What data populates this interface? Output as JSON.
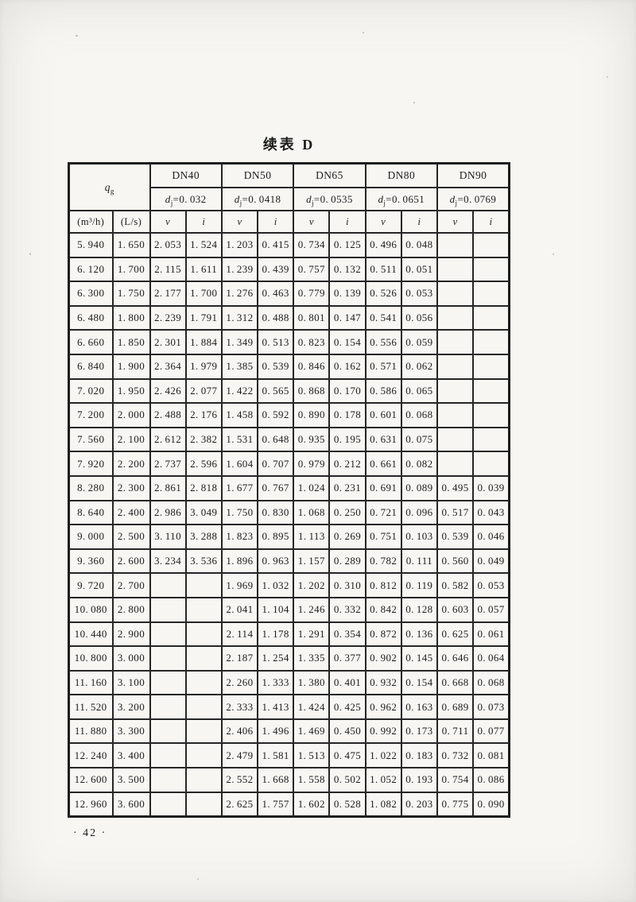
{
  "page": {
    "title": "续表 D",
    "page_number": "· 42 ·"
  },
  "table": {
    "flow_header": {
      "symbol": "q",
      "subscript": "g"
    },
    "unit_headers": [
      "(m³/h)",
      "(L/s)"
    ],
    "dn_groups": [
      {
        "dn": "DN40",
        "dj_symbol": "d",
        "dj_subscript": "j",
        "dj_value": "0.032"
      },
      {
        "dn": "DN50",
        "dj_symbol": "d",
        "dj_subscript": "j",
        "dj_value": "0.0418"
      },
      {
        "dn": "DN65",
        "dj_symbol": "d",
        "dj_subscript": "j",
        "dj_value": "0.0535"
      },
      {
        "dn": "DN80",
        "dj_symbol": "d",
        "dj_subscript": "j",
        "dj_value": "0.0651"
      },
      {
        "dn": "DN90",
        "dj_symbol": "d",
        "dj_subscript": "j",
        "dj_value": "0.0769"
      }
    ],
    "v_label": "v",
    "i_label": "i",
    "rows": [
      [
        "5.940",
        "1.650",
        "2.053",
        "1.524",
        "1.203",
        "0.415",
        "0.734",
        "0.125",
        "0.496",
        "0.048",
        "",
        ""
      ],
      [
        "6.120",
        "1.700",
        "2.115",
        "1.611",
        "1.239",
        "0.439",
        "0.757",
        "0.132",
        "0.511",
        "0.051",
        "",
        ""
      ],
      [
        "6.300",
        "1.750",
        "2.177",
        "1.700",
        "1.276",
        "0.463",
        "0.779",
        "0.139",
        "0.526",
        "0.053",
        "",
        ""
      ],
      [
        "6.480",
        "1.800",
        "2.239",
        "1.791",
        "1.312",
        "0.488",
        "0.801",
        "0.147",
        "0.541",
        "0.056",
        "",
        ""
      ],
      [
        "6.660",
        "1.850",
        "2.301",
        "1.884",
        "1.349",
        "0.513",
        "0.823",
        "0.154",
        "0.556",
        "0.059",
        "",
        ""
      ],
      [
        "6.840",
        "1.900",
        "2.364",
        "1.979",
        "1.385",
        "0.539",
        "0.846",
        "0.162",
        "0.571",
        "0.062",
        "",
        ""
      ],
      [
        "7.020",
        "1.950",
        "2.426",
        "2.077",
        "1.422",
        "0.565",
        "0.868",
        "0.170",
        "0.586",
        "0.065",
        "",
        ""
      ],
      [
        "7.200",
        "2.000",
        "2.488",
        "2.176",
        "1.458",
        "0.592",
        "0.890",
        "0.178",
        "0.601",
        "0.068",
        "",
        ""
      ],
      [
        "7.560",
        "2.100",
        "2.612",
        "2.382",
        "1.531",
        "0.648",
        "0.935",
        "0.195",
        "0.631",
        "0.075",
        "",
        ""
      ],
      [
        "7.920",
        "2.200",
        "2.737",
        "2.596",
        "1.604",
        "0.707",
        "0.979",
        "0.212",
        "0.661",
        "0.082",
        "",
        ""
      ],
      [
        "8.280",
        "2.300",
        "2.861",
        "2.818",
        "1.677",
        "0.767",
        "1.024",
        "0.231",
        "0.691",
        "0.089",
        "0.495",
        "0.039"
      ],
      [
        "8.640",
        "2.400",
        "2.986",
        "3.049",
        "1.750",
        "0.830",
        "1.068",
        "0.250",
        "0.721",
        "0.096",
        "0.517",
        "0.043"
      ],
      [
        "9.000",
        "2.500",
        "3.110",
        "3.288",
        "1.823",
        "0.895",
        "1.113",
        "0.269",
        "0.751",
        "0.103",
        "0.539",
        "0.046"
      ],
      [
        "9.360",
        "2.600",
        "3.234",
        "3.536",
        "1.896",
        "0.963",
        "1.157",
        "0.289",
        "0.782",
        "0.111",
        "0.560",
        "0.049"
      ],
      [
        "9.720",
        "2.700",
        "",
        "",
        "1.969",
        "1.032",
        "1.202",
        "0.310",
        "0.812",
        "0.119",
        "0.582",
        "0.053"
      ],
      [
        "10.080",
        "2.800",
        "",
        "",
        "2.041",
        "1.104",
        "1.246",
        "0.332",
        "0.842",
        "0.128",
        "0.603",
        "0.057"
      ],
      [
        "10.440",
        "2.900",
        "",
        "",
        "2.114",
        "1.178",
        "1.291",
        "0.354",
        "0.872",
        "0.136",
        "0.625",
        "0.061"
      ],
      [
        "10.800",
        "3.000",
        "",
        "",
        "2.187",
        "1.254",
        "1.335",
        "0.377",
        "0.902",
        "0.145",
        "0.646",
        "0.064"
      ],
      [
        "11.160",
        "3.100",
        "",
        "",
        "2.260",
        "1.333",
        "1.380",
        "0.401",
        "0.932",
        "0.154",
        "0.668",
        "0.068"
      ],
      [
        "11.520",
        "3.200",
        "",
        "",
        "2.333",
        "1.413",
        "1.424",
        "0.425",
        "0.962",
        "0.163",
        "0.689",
        "0.073"
      ],
      [
        "11.880",
        "3.300",
        "",
        "",
        "2.406",
        "1.496",
        "1.469",
        "0.450",
        "0.992",
        "0.173",
        "0.711",
        "0.077"
      ],
      [
        "12.240",
        "3.400",
        "",
        "",
        "2.479",
        "1.581",
        "1.513",
        "0.475",
        "1.022",
        "0.183",
        "0.732",
        "0.081"
      ],
      [
        "12.600",
        "3.500",
        "",
        "",
        "2.552",
        "1.668",
        "1.558",
        "0.502",
        "1.052",
        "0.193",
        "0.754",
        "0.086"
      ],
      [
        "12.960",
        "3.600",
        "",
        "",
        "2.625",
        "1.757",
        "1.602",
        "0.528",
        "1.082",
        "0.203",
        "0.775",
        "0.090"
      ]
    ]
  }
}
